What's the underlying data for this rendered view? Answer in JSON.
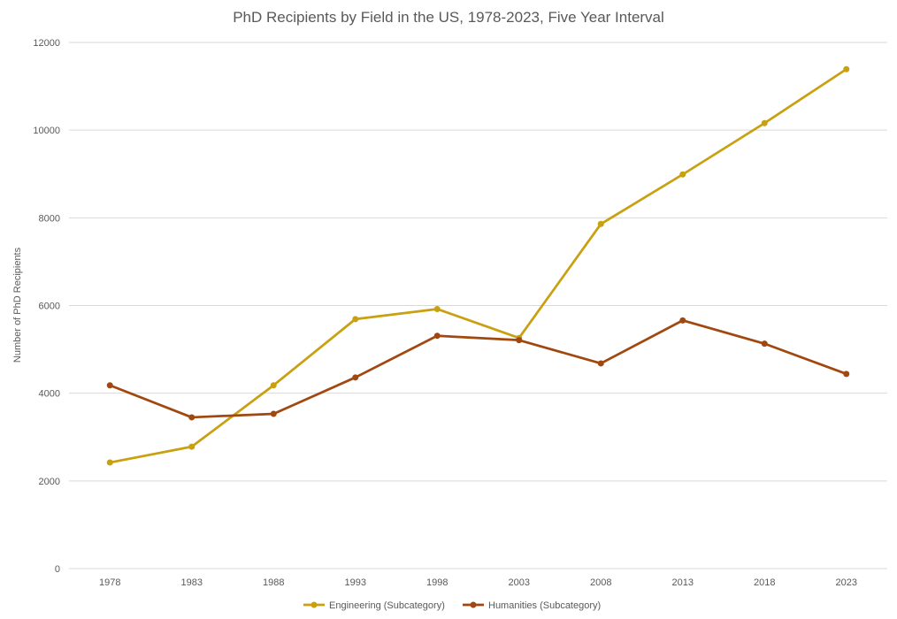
{
  "chart_data": {
    "type": "line",
    "title": "PhD Recipients by Field in the US, 1978-2023, Five Year Interval",
    "xlabel": "",
    "ylabel": "Number of PhD Recipients",
    "categories": [
      "1978",
      "1983",
      "1988",
      "1993",
      "1998",
      "2003",
      "2008",
      "2013",
      "2018",
      "2023"
    ],
    "ylim": [
      0,
      12000
    ],
    "yticks": [
      "0",
      "2000",
      "4000",
      "6000",
      "8000",
      "10000",
      "12000"
    ],
    "grid": true,
    "legend": "bottom",
    "series": [
      {
        "name": "Engineering (Subcategory)",
        "color": "#C9A010",
        "values": [
          2420,
          2780,
          4180,
          5690,
          5920,
          5260,
          7860,
          8990,
          10160,
          11390
        ]
      },
      {
        "name": "Humanities (Subcategory)",
        "color": "#A0480F",
        "values": [
          4180,
          3450,
          3530,
          4360,
          5310,
          5210,
          4680,
          5660,
          5130,
          4440
        ]
      }
    ]
  }
}
